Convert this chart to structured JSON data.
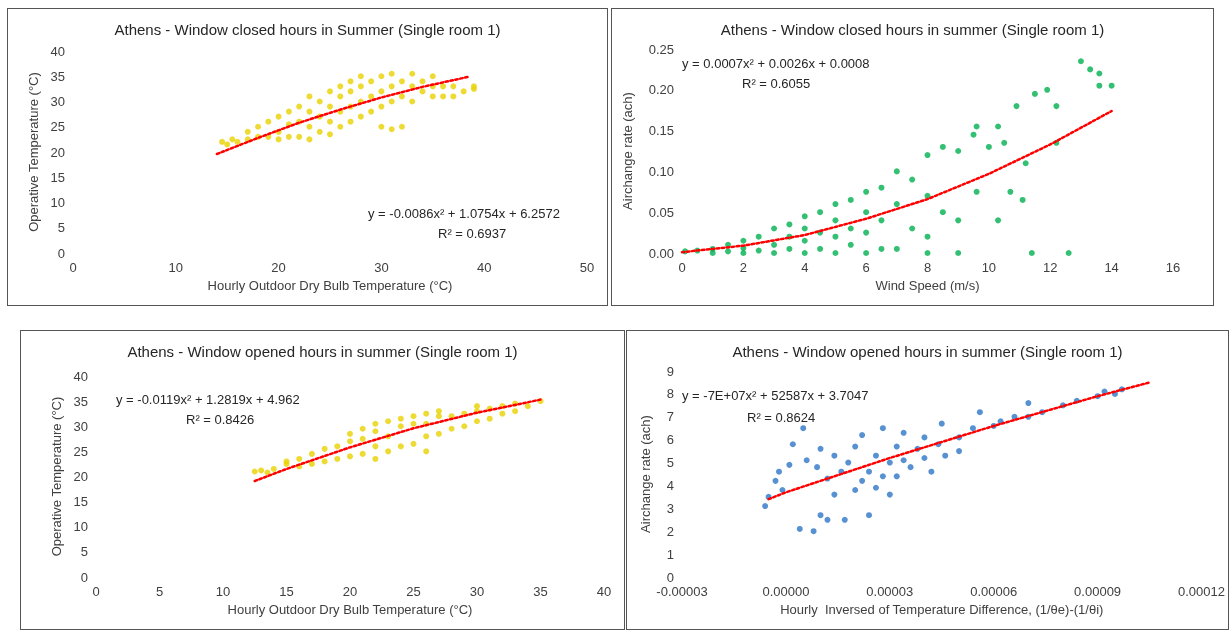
{
  "chart_data": [
    {
      "type": "scatter",
      "title": "Athens - Window closed hours in Summer (Single room 1)",
      "xlabel": "Hourly Outdoor Dry Bulb Temperature (°C)",
      "ylabel": "Operative Temperature (°C)",
      "xlim": [
        0,
        50
      ],
      "ylim": [
        0,
        40
      ],
      "xticks": [
        0,
        10,
        20,
        30,
        40,
        50
      ],
      "yticks": [
        0,
        5,
        10,
        15,
        20,
        25,
        30,
        35,
        40
      ],
      "marker": "circle",
      "annotations": [
        "y = -0.0086x² + 1.0754x + 6.2572",
        "R² = 0.6937"
      ],
      "series": [
        {
          "color": "#e8d200",
          "x": [
            14.5,
            15,
            15.5,
            16,
            17,
            17,
            18,
            18,
            19,
            19,
            20,
            20,
            20,
            21,
            21,
            21,
            22,
            22,
            22,
            23,
            23,
            23,
            23,
            24,
            24,
            24,
            25,
            25,
            25,
            25,
            26,
            26,
            26,
            26,
            27,
            27,
            27,
            27,
            28,
            28,
            28,
            28,
            29,
            29,
            29,
            30,
            30,
            30,
            30,
            31,
            31,
            31,
            31,
            32,
            32,
            32,
            33,
            33,
            33,
            34,
            34,
            35,
            35,
            35,
            36,
            36,
            37,
            37,
            38,
            39,
            39
          ],
          "values": [
            22,
            21.5,
            22.5,
            22,
            22.5,
            24,
            23,
            25,
            23,
            26,
            22.5,
            24,
            27,
            23,
            25.5,
            28,
            23,
            26,
            29,
            22.5,
            25,
            28,
            31,
            24,
            27,
            30,
            23.5,
            26,
            29,
            32,
            25,
            28,
            31,
            33,
            26,
            29,
            32,
            34,
            27,
            30,
            33,
            35,
            28,
            31,
            34,
            25,
            29,
            32,
            35,
            24.5,
            30,
            33,
            35.5,
            25,
            31,
            34,
            30,
            33,
            35.5,
            32,
            34,
            31,
            33,
            35,
            31,
            33,
            31,
            33,
            32,
            32.5,
            33
          ]
        },
        {
          "type": "line",
          "color": "#ff0000",
          "line_style": "dotted",
          "marker": "none",
          "x": [
            14,
            18,
            22,
            26,
            30,
            34,
            38.5
          ],
          "values": [
            19.6,
            22.8,
            25.8,
            28.4,
            30.8,
            32.9,
            34.9
          ]
        }
      ]
    },
    {
      "type": "scatter",
      "title": "Athens - Window closed hours in summer (Single room 1)",
      "xlabel": "Wind Speed (m/s)",
      "ylabel": "Airchange rate (ach)",
      "xlim": [
        0,
        16
      ],
      "ylim": [
        0,
        0.25
      ],
      "xticks": [
        0,
        2,
        4,
        6,
        8,
        10,
        12,
        14,
        16
      ],
      "yticks": [
        {
          "value": 0,
          "label": "0.00"
        },
        {
          "value": 0.05,
          "label": "0.05"
        },
        {
          "value": 0.1,
          "label": "0.10"
        },
        {
          "value": 0.15,
          "label": "0.15"
        },
        {
          "value": 0.2,
          "label": "0.20"
        },
        {
          "value": 0.25,
          "label": "0.25"
        }
      ],
      "marker": "circle",
      "annotations": [
        "y = 0.0007x² + 0.0026x + 0.0008",
        "R² = 0.6055"
      ],
      "series": [
        {
          "color": "#00b050",
          "x": [
            0.1,
            0.5,
            1,
            1,
            1.5,
            1.5,
            2,
            2,
            2,
            2.5,
            2.5,
            3,
            3,
            3,
            3.5,
            3.5,
            3.5,
            4,
            4,
            4,
            4,
            4.5,
            4.5,
            4.5,
            5,
            5,
            5,
            5,
            5.5,
            5.5,
            5.5,
            6,
            6,
            6,
            6,
            6.5,
            6.5,
            6.5,
            7,
            7,
            7,
            7.5,
            7.5,
            8,
            8,
            8,
            8,
            8.5,
            8.5,
            9,
            9,
            9,
            9.5,
            9.6,
            9.6,
            10,
            10.3,
            10.3,
            10.5,
            10.7,
            10.9,
            11.1,
            11.2,
            11.4,
            11.5,
            11.9,
            12.2,
            12.2,
            12.6,
            13,
            13.3,
            13.6,
            13.6,
            14
          ],
          "values": [
            0.002,
            0.003,
            0,
            0.005,
            0.002,
            0.01,
            0,
            0.006,
            0.015,
            0.003,
            0.02,
            0,
            0.01,
            0.03,
            0.005,
            0.02,
            0.035,
            0,
            0.015,
            0.03,
            0.045,
            0.005,
            0.025,
            0.05,
            0,
            0.02,
            0.04,
            0.06,
            0.01,
            0.03,
            0.065,
            0,
            0.025,
            0.05,
            0.075,
            0.005,
            0.04,
            0.08,
            0.005,
            0.06,
            0.1,
            0.03,
            0.09,
            0,
            0.02,
            0.07,
            0.12,
            0.05,
            0.13,
            0,
            0.04,
            0.125,
            0.145,
            0.075,
            0.155,
            0.13,
            0.04,
            0.155,
            0.135,
            0.075,
            0.18,
            0.065,
            0.11,
            0,
            0.195,
            0.2,
            0.18,
            0.135,
            0,
            0.235,
            0.225,
            0.22,
            0.205,
            0.205
          ]
        },
        {
          "type": "line",
          "color": "#ff0000",
          "line_style": "dotted",
          "marker": "none",
          "x": [
            0,
            2,
            4,
            6,
            8,
            10,
            12,
            14
          ],
          "values": [
            0.001,
            0.009,
            0.022,
            0.042,
            0.066,
            0.097,
            0.133,
            0.174
          ]
        }
      ]
    },
    {
      "type": "scatter",
      "title": "Athens - Window opened hours in summer (Single room 1)",
      "xlabel": "Hourly Outdoor Dry Bulb Temperature (°C)",
      "ylabel": "Operative Temperature (°C)",
      "xlim": [
        0,
        40
      ],
      "ylim": [
        0,
        40
      ],
      "xticks": [
        0,
        5,
        10,
        15,
        20,
        25,
        30,
        35,
        40
      ],
      "yticks": [
        0,
        5,
        10,
        15,
        20,
        25,
        30,
        35,
        40
      ],
      "marker": "circle",
      "annotations": [
        "y = -0.0119x² + 1.2819x + 4.962",
        "R² = 0.8426"
      ],
      "series": [
        {
          "color": "#e8d200",
          "x": [
            12.5,
            13,
            13.5,
            14,
            15,
            15,
            16,
            16,
            17,
            17,
            18,
            18,
            19,
            19,
            20,
            20,
            20,
            21,
            21,
            21,
            22,
            22,
            22,
            22,
            23,
            23,
            23,
            24,
            24,
            24,
            25,
            25,
            25,
            26,
            26,
            26,
            26,
            27,
            27,
            27,
            28,
            28,
            29,
            29,
            30,
            30,
            30,
            31,
            31,
            32,
            32,
            33,
            33,
            34,
            35
          ],
          "values": [
            21,
            21.2,
            20.8,
            21.5,
            22.5,
            23,
            22,
            23.5,
            22.5,
            24.5,
            23,
            25.5,
            23.5,
            26,
            24,
            27,
            28.5,
            24.5,
            27.5,
            29.5,
            23.5,
            26,
            29,
            30.5,
            25,
            28,
            31,
            26,
            30,
            31.5,
            26.5,
            30.5,
            32,
            25,
            28,
            30.5,
            32.5,
            28.5,
            32,
            33,
            29.5,
            32,
            30,
            32.5,
            31,
            33,
            34,
            31.5,
            33.5,
            32.5,
            34,
            33,
            34.5,
            34,
            35
          ]
        },
        {
          "type": "line",
          "color": "#ff0000",
          "line_style": "dotted",
          "marker": "none",
          "x": [
            12.5,
            15,
            20,
            25,
            30,
            35
          ],
          "values": [
            19.1,
            21.5,
            25.8,
            29.6,
            32.7,
            35.3
          ]
        }
      ]
    },
    {
      "type": "scatter",
      "title": "Athens - Window opened hours in summer (Single room 1)",
      "xlabel": "Hourly  Inversed of Temperature Difference, (1/θe)-(1/θi)",
      "ylabel": "Airchange rate (ach)",
      "xlim": [
        -3e-05,
        0.00012
      ],
      "ylim": [
        0,
        9
      ],
      "xticks": [
        {
          "value": -3e-05,
          "label": "-0.00003"
        },
        {
          "value": 0,
          "label": "0.00000"
        },
        {
          "value": 3e-05,
          "label": "0.00003"
        },
        {
          "value": 6e-05,
          "label": "0.00006"
        },
        {
          "value": 9e-05,
          "label": "0.00009"
        },
        {
          "value": 0.00012,
          "label": "0.00012"
        }
      ],
      "yticks": [
        0,
        1,
        2,
        3,
        4,
        5,
        6,
        7,
        8,
        9
      ],
      "marker": "circle",
      "annotations": [
        "y = -7E+07x² + 52587x + 3.7047",
        "R² = 0.8624"
      ],
      "series": [
        {
          "color": "#2e75c6",
          "x": [
            -6e-06,
            -5e-06,
            -3e-06,
            -2e-06,
            -1e-06,
            1e-06,
            2e-06,
            4e-06,
            5e-06,
            6e-06,
            8e-06,
            9e-06,
            1e-05,
            1e-05,
            1.2e-05,
            1.2e-05,
            1.4e-05,
            1.4e-05,
            1.6e-05,
            1.7e-05,
            1.8e-05,
            2e-05,
            2e-05,
            2.2e-05,
            2.2e-05,
            2.4e-05,
            2.4e-05,
            2.6e-05,
            2.6e-05,
            2.8e-05,
            2.8e-05,
            3e-05,
            3e-05,
            3.2e-05,
            3.2e-05,
            3.4e-05,
            3.4e-05,
            3.6e-05,
            3.8e-05,
            4e-05,
            4e-05,
            4.2e-05,
            4.4e-05,
            4.5e-05,
            4.6e-05,
            5e-05,
            5e-05,
            5.4e-05,
            5.6e-05,
            6e-05,
            6.2e-05,
            6.6e-05,
            7e-05,
            7e-05,
            7.4e-05,
            8e-05,
            8.4e-05,
            9e-05,
            9.2e-05,
            9.5e-05,
            9.7e-05
          ],
          "values": [
            3.1,
            3.5,
            4.2,
            4.6,
            3.8,
            4.9,
            5.8,
            2.1,
            6.5,
            5.1,
            2.0,
            4.8,
            5.6,
            2.7,
            4.3,
            2.5,
            3.6,
            5.3,
            4.6,
            2.5,
            5.0,
            3.8,
            5.7,
            4.2,
            6.2,
            4.6,
            2.7,
            5.3,
            3.9,
            6.5,
            4.4,
            5.0,
            3.6,
            5.7,
            4.4,
            6.3,
            5.1,
            4.8,
            5.6,
            6.1,
            5.2,
            4.6,
            5.8,
            6.7,
            5.3,
            6.1,
            5.5,
            6.5,
            7.2,
            6.6,
            6.8,
            7.0,
            7.0,
            7.6,
            7.2,
            7.5,
            7.7,
            7.9,
            8.1,
            8.0,
            8.2
          ]
        },
        {
          "type": "line",
          "color": "#ff0000",
          "line_style": "dotted",
          "marker": "none",
          "x": [
            -5e-06,
            0,
            3e-05,
            6e-05,
            9e-05,
            0.000105
          ],
          "values": [
            3.4,
            3.7,
            5.2,
            6.6,
            7.9,
            8.5
          ]
        }
      ]
    }
  ]
}
